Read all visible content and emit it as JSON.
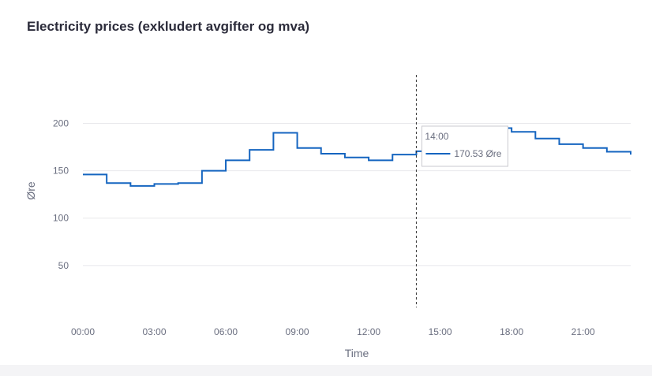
{
  "chart_data": {
    "type": "line",
    "step": "post",
    "title": "Electricity prices (exkludert avgifter og mva)",
    "xlabel": "Time",
    "ylabel": "Øre",
    "xlim": [
      0,
      23
    ],
    "ylim": [
      0,
      222
    ],
    "x_ticks": [
      {
        "value": 0,
        "label": "00:00"
      },
      {
        "value": 3,
        "label": "03:00"
      },
      {
        "value": 6,
        "label": "06:00"
      },
      {
        "value": 9,
        "label": "09:00"
      },
      {
        "value": 12,
        "label": "12:00"
      },
      {
        "value": 15,
        "label": "15:00"
      },
      {
        "value": 18,
        "label": "18:00"
      },
      {
        "value": 21,
        "label": "21:00"
      }
    ],
    "y_ticks": [
      50,
      100,
      150,
      200
    ],
    "grid": true,
    "series": [
      {
        "color": "#1565c0",
        "x": [
          0,
          1,
          2,
          3,
          4,
          5,
          6,
          7,
          8,
          9,
          10,
          11,
          12,
          13,
          14,
          15,
          16,
          17,
          18,
          19,
          20,
          21,
          22,
          23
        ],
        "y": [
          146,
          137,
          134,
          136,
          137,
          150,
          161,
          172,
          190,
          174,
          168,
          164,
          161,
          167,
          170.53,
          182,
          194,
          195,
          191,
          184,
          178,
          174,
          170,
          167
        ]
      }
    ],
    "hover": {
      "x": 14,
      "time_label": "14:00",
      "value_label": "170.53 Øre"
    }
  }
}
